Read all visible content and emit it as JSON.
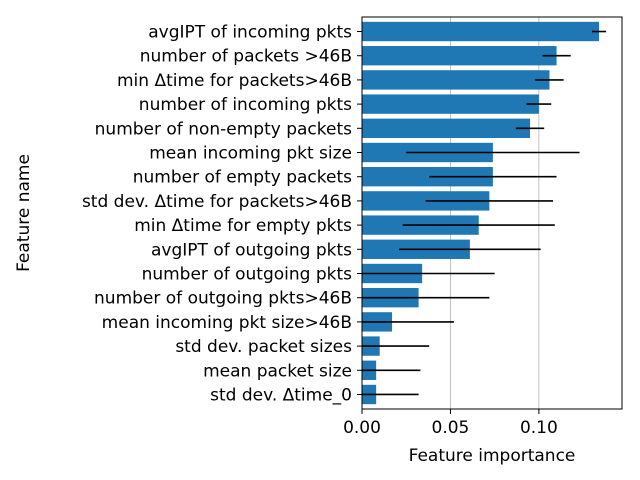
{
  "chart_data": {
    "type": "bar",
    "orientation": "horizontal",
    "categories": [
      "avgIPT of incoming pkts",
      "number of packets >46B",
      "min Δtime for packets>46B",
      "number of incoming pkts",
      "number of non-empty packets",
      "mean incoming pkt size",
      "number of empty packets",
      "std dev. Δtime for packets>46B",
      "min Δtime for empty pkts",
      "avgIPT of outgoing pkts",
      "number of outgoing pkts",
      "number of outgoing pkts>46B",
      "mean incoming pkt size>46B",
      "std dev. packet sizes",
      "mean packet size",
      "std dev. Δtime_0"
    ],
    "values": [
      0.134,
      0.11,
      0.106,
      0.1,
      0.095,
      0.074,
      0.074,
      0.072,
      0.066,
      0.061,
      0.034,
      0.032,
      0.017,
      0.01,
      0.008,
      0.008
    ],
    "errors": [
      0.004,
      0.008,
      0.008,
      0.007,
      0.008,
      0.049,
      0.036,
      0.036,
      0.043,
      0.04,
      0.041,
      0.04,
      0.035,
      0.028,
      0.025,
      0.024
    ],
    "title": "",
    "xlabel": "Feature importance",
    "ylabel": "Feature name",
    "xlim": [
      0.0,
      0.147
    ],
    "xticks": [
      0.0,
      0.05,
      0.1
    ],
    "xtick_labels": [
      "0.00",
      "0.05",
      "0.10"
    ],
    "grid": "vertical",
    "bar_color": "#1f77b4",
    "error_color": "#000000"
  }
}
